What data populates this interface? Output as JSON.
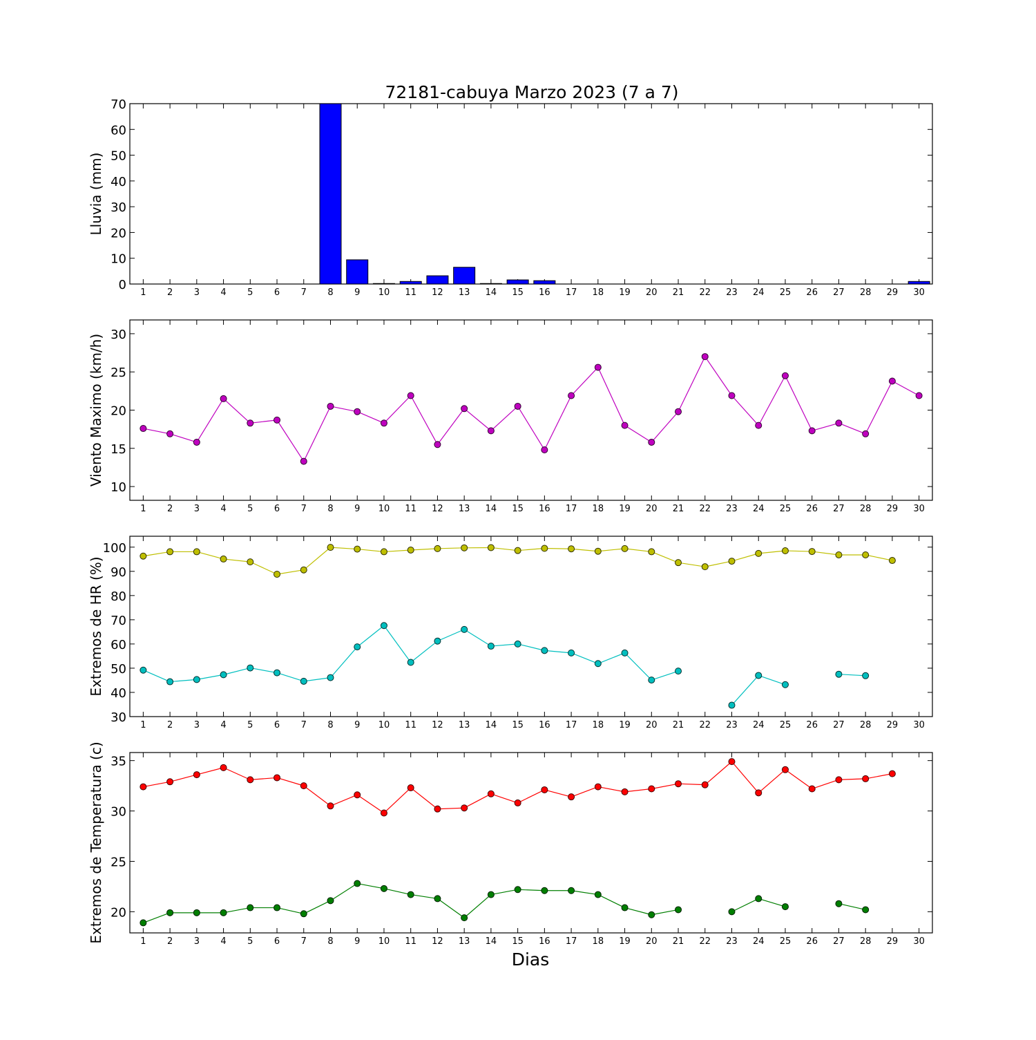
{
  "chart_data": {
    "type": "composite",
    "title": "72181-cabuya Marzo 2023  (7 a 7)",
    "xlabel": "Dias",
    "days": [
      1,
      2,
      3,
      4,
      5,
      6,
      7,
      8,
      9,
      10,
      11,
      12,
      13,
      14,
      15,
      16,
      17,
      18,
      19,
      20,
      21,
      22,
      23,
      24,
      25,
      26,
      27,
      28,
      29,
      30
    ],
    "xlim": [
      0.5,
      30.5
    ],
    "grid": false,
    "panels": [
      {
        "type": "bar",
        "ylabel": "Lluvia (mm)",
        "ylim": [
          0,
          70
        ],
        "yticks": [
          0,
          10,
          20,
          30,
          40,
          50,
          60,
          70
        ],
        "series": [
          {
            "color": "#0000ff",
            "values": [
              0,
              0,
              0,
              0,
              0,
              0,
              0,
              70,
              9.4,
              0.2,
              1.0,
              3.2,
              6.5,
              0.2,
              1.6,
              1.3,
              0,
              0,
              0,
              0,
              0,
              0,
              0,
              0,
              0,
              0,
              0,
              0,
              0,
              1.0
            ]
          }
        ]
      },
      {
        "type": "line",
        "ylabel": "Viento Maximo (km/h)",
        "ylim": [
          8.2,
          31.8
        ],
        "yticks": [
          10,
          15,
          20,
          25,
          30
        ],
        "series": [
          {
            "color": "#bf00bf",
            "values": [
              17.6,
              16.9,
              15.8,
              21.5,
              18.3,
              18.7,
              13.3,
              20.5,
              19.8,
              18.3,
              21.9,
              15.5,
              20.2,
              17.3,
              20.5,
              14.8,
              21.9,
              25.6,
              18.0,
              15.8,
              19.8,
              27.0,
              21.9,
              18.0,
              24.5,
              17.3,
              18.3,
              16.9,
              23.8,
              21.9
            ]
          }
        ]
      },
      {
        "type": "line",
        "ylabel": "Extremos de HR (%)",
        "ylim": [
          30,
          104.5
        ],
        "yticks": [
          30,
          40,
          50,
          60,
          70,
          80,
          90,
          100
        ],
        "series": [
          {
            "color": "#bfbf00",
            "values": [
              96.3,
              98.1,
              98.1,
              95.1,
              93.9,
              88.8,
              90.6,
              99.9,
              99.2,
              98.1,
              98.8,
              99.4,
              99.7,
              99.8,
              98.6,
              99.5,
              99.3,
              98.3,
              99.4,
              98.1,
              93.6,
              91.9,
              94.2,
              97.4,
              98.5,
              98.2,
              96.8,
              96.8,
              94.5,
              null
            ]
          },
          {
            "color": "#00bfbf",
            "values": [
              49.2,
              44.4,
              45.3,
              47.3,
              50.1,
              48.1,
              44.6,
              46.1,
              58.8,
              67.6,
              52.4,
              61.2,
              66.0,
              59.1,
              60.0,
              57.3,
              56.3,
              51.9,
              56.3,
              45.1,
              48.8,
              null,
              34.7,
              47.0,
              43.2,
              null,
              47.5,
              46.9,
              null,
              null
            ]
          }
        ]
      },
      {
        "type": "line",
        "ylabel": "Extremos de Temperatura (c)",
        "ylim": [
          17.9,
          35.8
        ],
        "yticks": [
          20,
          25,
          30,
          35
        ],
        "series": [
          {
            "color": "#ff0000",
            "values": [
              32.4,
              32.9,
              33.6,
              34.3,
              33.1,
              33.3,
              32.5,
              30.5,
              31.6,
              29.8,
              32.3,
              30.2,
              30.3,
              31.7,
              30.8,
              32.1,
              31.4,
              32.4,
              31.9,
              32.2,
              32.7,
              32.6,
              34.9,
              31.8,
              34.1,
              32.2,
              33.1,
              33.2,
              33.7,
              null
            ]
          },
          {
            "color": "#007f00",
            "values": [
              18.9,
              19.9,
              19.9,
              19.9,
              20.4,
              20.4,
              19.8,
              21.1,
              22.8,
              22.3,
              21.7,
              21.3,
              19.4,
              21.7,
              22.2,
              22.1,
              22.1,
              21.7,
              20.4,
              19.7,
              20.2,
              null,
              20.0,
              21.3,
              20.5,
              null,
              20.8,
              20.2,
              null,
              null
            ]
          }
        ]
      }
    ]
  }
}
